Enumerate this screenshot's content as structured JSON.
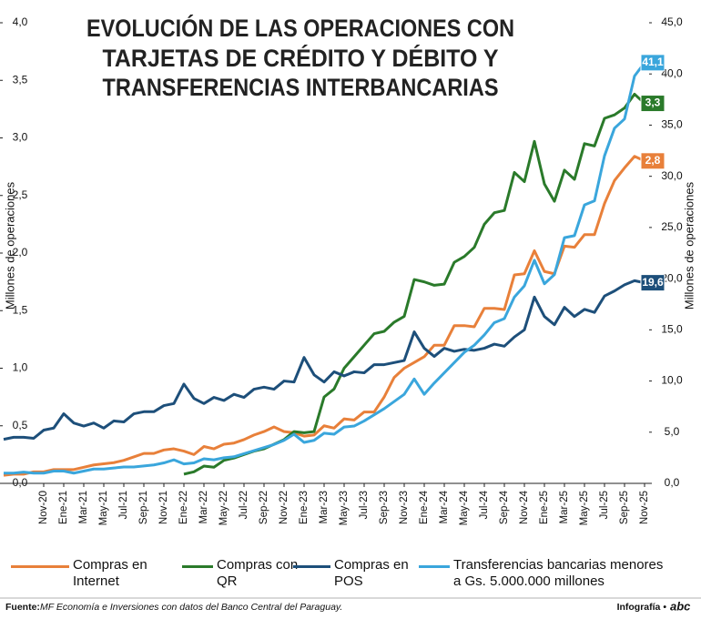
{
  "chart_data": {
    "type": "line",
    "title": [
      "EVOLUCIÓN DE LAS OPERACIONES CON",
      "TARJETAS DE CRÉDITO Y DÉBITO Y",
      "TRANSFERENCIAS INTERBANCARIAS"
    ],
    "ylabel": "Millones de operaciones",
    "y2label": "Millones de operaciones",
    "categories": [
      null,
      null,
      null,
      null,
      "Nov-20",
      null,
      "Ene-21",
      null,
      "Mar-21",
      null,
      "May-21",
      null,
      "Jul-21",
      null,
      "Sep-21",
      null,
      "Nov-21",
      null,
      "Ene-22",
      null,
      "Mar-22",
      null,
      "May-22",
      null,
      "Jul-22",
      null,
      "Sep-22",
      null,
      "Nov-22",
      null,
      "Ene-23",
      null,
      "Mar-23",
      null,
      "May-23",
      null,
      "Jul-23",
      null,
      "Sep-23",
      null,
      "Nov-23",
      null,
      "Ene-24",
      null,
      "Mar-24",
      null,
      "May-24",
      null,
      "Jul-24",
      null,
      "Sep-24",
      null,
      "Nov-24",
      null,
      "Ene-25",
      null,
      "Mar-25",
      null,
      "May-25",
      null,
      "Jul-25",
      null,
      "Sep-25",
      null,
      "Nov-25"
    ],
    "ylim": [
      0,
      4
    ],
    "yticks": [
      {
        "value": 0,
        "label": "0,0"
      },
      {
        "value": 0.5,
        "label": "0,5"
      },
      {
        "value": 1,
        "label": "1,0"
      },
      {
        "value": 1.5,
        "label": "1,5"
      },
      {
        "value": 2,
        "label": "2,0"
      },
      {
        "value": 2.5,
        "label": "2,5"
      },
      {
        "value": 3,
        "label": "3,0"
      },
      {
        "value": 3.5,
        "label": "3,5"
      },
      {
        "value": 4,
        "label": "4,0"
      }
    ],
    "y2lim": [
      0,
      45
    ],
    "y2ticks": [
      {
        "value": 0,
        "label": "0,0"
      },
      {
        "value": 5,
        "label": "5,0"
      },
      {
        "value": 10,
        "label": "10,0"
      },
      {
        "value": 15,
        "label": "15,0"
      },
      {
        "value": 20,
        "label": "20,0"
      },
      {
        "value": 25,
        "label": "25,0"
      },
      {
        "value": 30,
        "label": "30,0"
      },
      {
        "value": 35,
        "label": "35,0"
      },
      {
        "value": 40,
        "label": "40,0"
      },
      {
        "value": 45,
        "label": "45,0"
      }
    ],
    "grid": false,
    "series": [
      {
        "name": "Compras en Internet",
        "color": "#e8803a",
        "end_label": "2,8",
        "values": [
          0.07,
          0.08,
          0.08,
          0.1,
          0.1,
          0.12,
          0.12,
          0.12,
          0.14,
          0.16,
          0.17,
          0.18,
          0.2,
          0.23,
          0.26,
          0.26,
          0.29,
          0.3,
          0.28,
          0.25,
          0.32,
          0.3,
          0.34,
          0.35,
          0.38,
          0.42,
          0.45,
          0.49,
          0.45,
          0.44,
          0.41,
          0.42,
          0.5,
          0.48,
          0.56,
          0.55,
          0.62,
          0.62,
          0.75,
          0.92,
          1.0,
          1.05,
          1.1,
          1.2,
          1.2,
          1.37,
          1.37,
          1.36,
          1.52,
          1.52,
          1.51,
          1.81,
          1.82,
          2.02,
          1.84,
          1.82,
          2.06,
          2.05,
          2.16,
          2.16,
          2.43,
          2.63,
          2.74,
          2.84,
          2.8
        ]
      },
      {
        "name": "Compras con QR",
        "color": "#2a7a2a",
        "end_label": "3,3",
        "values": [
          null,
          null,
          null,
          null,
          null,
          null,
          null,
          null,
          null,
          null,
          null,
          null,
          null,
          null,
          null,
          null,
          null,
          null,
          0.08,
          0.1,
          0.15,
          0.14,
          0.2,
          0.22,
          0.25,
          0.28,
          0.3,
          0.34,
          0.38,
          0.45,
          0.44,
          0.45,
          0.75,
          0.82,
          1.0,
          1.1,
          1.2,
          1.3,
          1.32,
          1.4,
          1.45,
          1.77,
          1.75,
          1.72,
          1.73,
          1.92,
          1.97,
          2.05,
          2.25,
          2.35,
          2.37,
          2.7,
          2.62,
          2.97,
          2.6,
          2.45,
          2.72,
          2.64,
          2.95,
          2.93,
          3.17,
          3.2,
          3.26,
          3.38,
          3.3
        ]
      },
      {
        "name": "Compras en POS",
        "color": "#1d4f7a",
        "axis": "y2",
        "end_label": "19,6",
        "values": [
          4.3,
          4.5,
          4.5,
          4.4,
          5.2,
          5.4,
          6.8,
          5.9,
          5.6,
          5.9,
          5.4,
          6.1,
          6.0,
          6.8,
          7.0,
          7.0,
          7.6,
          7.8,
          9.7,
          8.3,
          7.8,
          8.4,
          8.1,
          8.7,
          8.4,
          9.2,
          9.4,
          9.2,
          10.0,
          9.9,
          12.3,
          10.6,
          9.9,
          10.9,
          10.5,
          10.9,
          10.8,
          11.6,
          11.6,
          11.8,
          12.0,
          14.8,
          13.2,
          12.4,
          13.2,
          12.9,
          13.1,
          13.0,
          13.2,
          13.6,
          13.4,
          14.3,
          15.0,
          18.2,
          16.3,
          15.5,
          17.2,
          16.3,
          17.0,
          16.7,
          18.3,
          18.8,
          19.4,
          19.8,
          19.6
        ]
      },
      {
        "name": "Transferencias bancarias menores a Gs. 5.000.000 millones",
        "color": "#3aa6dc",
        "axis": "y2",
        "end_label": "41,1",
        "values": [
          1.0,
          1.0,
          1.1,
          1.0,
          1.0,
          1.2,
          1.2,
          1.0,
          1.2,
          1.4,
          1.4,
          1.5,
          1.6,
          1.6,
          1.7,
          1.8,
          2.0,
          2.3,
          1.9,
          2.0,
          2.4,
          2.3,
          2.5,
          2.6,
          2.9,
          3.2,
          3.5,
          3.8,
          4.2,
          4.8,
          4.0,
          4.2,
          4.9,
          4.8,
          5.5,
          5.6,
          6.1,
          6.7,
          7.3,
          8.0,
          8.7,
          10.2,
          8.7,
          9.8,
          10.8,
          11.8,
          12.8,
          13.5,
          14.5,
          15.7,
          16.1,
          18.2,
          19.3,
          21.8,
          19.5,
          20.4,
          24.0,
          24.2,
          27.2,
          27.6,
          32.0,
          34.7,
          35.6,
          39.8,
          41.1
        ]
      }
    ],
    "source_label": "Fuente:",
    "source": "MF Economía e Inversiones con datos del Banco Central del Paraguay.",
    "credit": "Infografía •",
    "logo": "abc"
  }
}
